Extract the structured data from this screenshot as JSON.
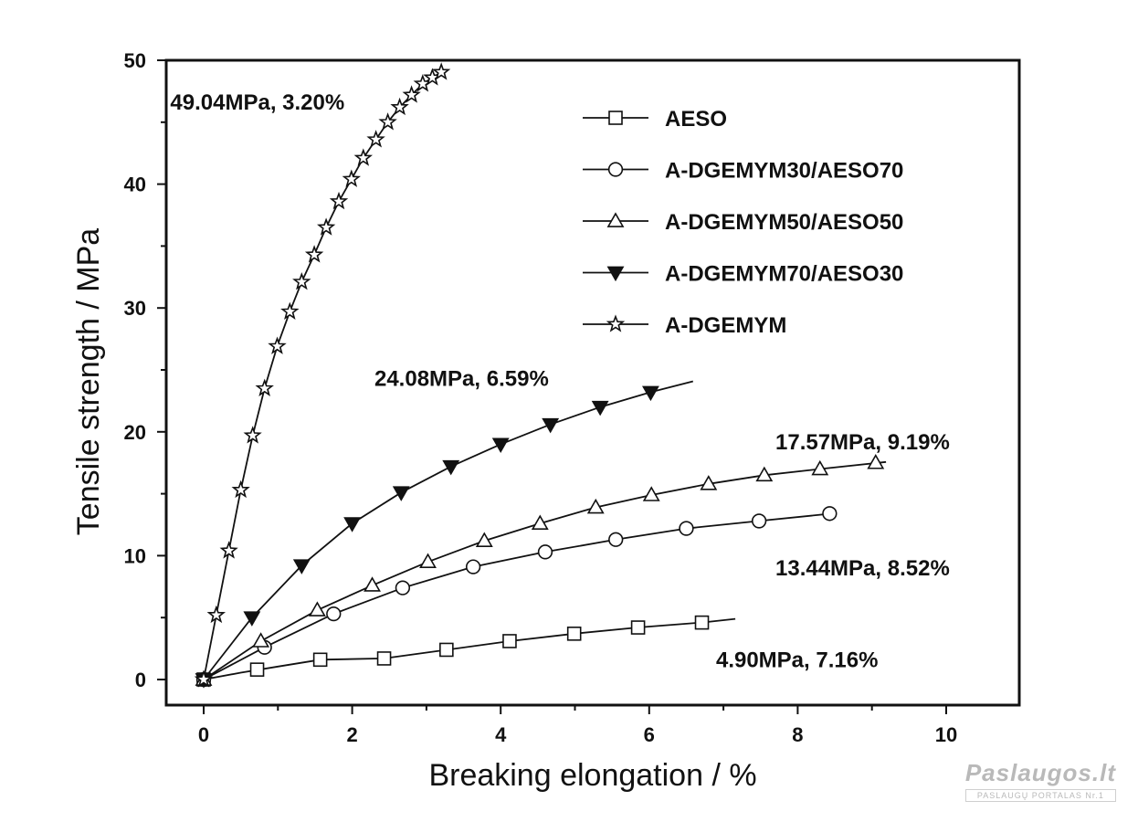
{
  "chart_data": {
    "type": "line",
    "xlabel": "Breaking elongation / %",
    "ylabel": "Tensile strength / MPa",
    "xlim": [
      -0.5,
      11
    ],
    "ylim": [
      -2,
      50
    ],
    "x_ticks": [
      0,
      2,
      4,
      6,
      8,
      10
    ],
    "y_ticks": [
      0,
      10,
      20,
      30,
      40,
      50
    ],
    "grid": false,
    "legend_position": "top-right",
    "series": [
      {
        "name": "AESO",
        "marker": "square",
        "filled": false,
        "points": [
          [
            0,
            0
          ],
          [
            0.72,
            0.8
          ],
          [
            1.57,
            1.6
          ],
          [
            2.43,
            1.7
          ],
          [
            3.27,
            2.4
          ],
          [
            4.12,
            3.1
          ],
          [
            4.99,
            3.7
          ],
          [
            5.85,
            4.2
          ],
          [
            6.71,
            4.6
          ]
        ],
        "curve": [
          [
            0,
            0
          ],
          [
            0.5,
            0.55
          ],
          [
            1.0,
            1.05
          ],
          [
            1.57,
            1.6
          ],
          [
            2.43,
            1.7
          ],
          [
            3.27,
            2.4
          ],
          [
            4.12,
            3.1
          ],
          [
            4.99,
            3.7
          ],
          [
            5.85,
            4.2
          ],
          [
            6.71,
            4.6
          ],
          [
            7.16,
            4.9
          ]
        ]
      },
      {
        "name": "A-DGEMYM30/AESO70",
        "marker": "circle",
        "filled": false,
        "points": [
          [
            0,
            0
          ],
          [
            0.82,
            2.6
          ],
          [
            1.75,
            5.3
          ],
          [
            2.68,
            7.4
          ],
          [
            3.63,
            9.1
          ],
          [
            4.6,
            10.3
          ],
          [
            5.55,
            11.3
          ],
          [
            6.5,
            12.2
          ],
          [
            7.48,
            12.8
          ],
          [
            8.43,
            13.4
          ]
        ],
        "curve": [
          [
            0,
            0
          ],
          [
            0.82,
            2.6
          ],
          [
            1.75,
            5.3
          ],
          [
            2.68,
            7.4
          ],
          [
            3.63,
            9.1
          ],
          [
            4.6,
            10.3
          ],
          [
            5.55,
            11.3
          ],
          [
            6.5,
            12.2
          ],
          [
            7.48,
            12.8
          ],
          [
            8.52,
            13.44
          ]
        ]
      },
      {
        "name": "A-DGEMYM50/AESO50",
        "marker": "triangle-up",
        "filled": false,
        "points": [
          [
            0,
            0
          ],
          [
            0.77,
            3.1
          ],
          [
            1.53,
            5.6
          ],
          [
            2.27,
            7.6
          ],
          [
            3.02,
            9.5
          ],
          [
            3.78,
            11.2
          ],
          [
            4.53,
            12.6
          ],
          [
            5.28,
            13.9
          ],
          [
            6.03,
            14.9
          ],
          [
            6.8,
            15.8
          ],
          [
            7.55,
            16.5
          ],
          [
            8.3,
            17.0
          ],
          [
            9.05,
            17.5
          ]
        ],
        "curve": [
          [
            0,
            0
          ],
          [
            0.77,
            3.1
          ],
          [
            1.53,
            5.6
          ],
          [
            2.27,
            7.6
          ],
          [
            3.02,
            9.5
          ],
          [
            3.78,
            11.2
          ],
          [
            4.53,
            12.6
          ],
          [
            5.28,
            13.9
          ],
          [
            6.03,
            14.9
          ],
          [
            6.8,
            15.8
          ],
          [
            7.55,
            16.5
          ],
          [
            8.3,
            17.0
          ],
          [
            9.19,
            17.57
          ]
        ]
      },
      {
        "name": "A-DGEMYM70/AESO30",
        "marker": "triangle-down",
        "filled": true,
        "points": [
          [
            0,
            0
          ],
          [
            0.65,
            5.0
          ],
          [
            1.32,
            9.2
          ],
          [
            2.0,
            12.6
          ],
          [
            2.66,
            15.1
          ],
          [
            3.33,
            17.2
          ],
          [
            4.0,
            19.0
          ],
          [
            4.67,
            20.6
          ],
          [
            5.34,
            22.0
          ],
          [
            6.02,
            23.2
          ]
        ],
        "curve": [
          [
            0,
            0
          ],
          [
            0.65,
            5.0
          ],
          [
            1.32,
            9.2
          ],
          [
            2.0,
            12.6
          ],
          [
            2.66,
            15.1
          ],
          [
            3.33,
            17.2
          ],
          [
            4.0,
            19.0
          ],
          [
            4.67,
            20.6
          ],
          [
            5.34,
            22.0
          ],
          [
            6.02,
            23.2
          ],
          [
            6.59,
            24.08
          ]
        ]
      },
      {
        "name": "A-DGEMYM",
        "marker": "star",
        "filled": false,
        "points": [
          [
            0,
            0
          ],
          [
            0.17,
            5.2
          ],
          [
            0.34,
            10.4
          ],
          [
            0.5,
            15.3
          ],
          [
            0.66,
            19.7
          ],
          [
            0.82,
            23.5
          ],
          [
            0.99,
            26.9
          ],
          [
            1.16,
            29.7
          ],
          [
            1.32,
            32.1
          ],
          [
            1.49,
            34.3
          ],
          [
            1.65,
            36.5
          ],
          [
            1.82,
            38.6
          ],
          [
            1.99,
            40.4
          ],
          [
            2.15,
            42.1
          ],
          [
            2.32,
            43.6
          ],
          [
            2.48,
            45.0
          ],
          [
            2.64,
            46.2
          ],
          [
            2.8,
            47.2
          ],
          [
            2.95,
            48.1
          ],
          [
            3.08,
            48.6
          ],
          [
            3.2,
            49.04
          ]
        ],
        "curve": [
          [
            0,
            0
          ],
          [
            0.17,
            5.2
          ],
          [
            0.34,
            10.4
          ],
          [
            0.5,
            15.3
          ],
          [
            0.66,
            19.7
          ],
          [
            0.82,
            23.5
          ],
          [
            0.99,
            26.9
          ],
          [
            1.16,
            29.7
          ],
          [
            1.32,
            32.1
          ],
          [
            1.49,
            34.3
          ],
          [
            1.65,
            36.5
          ],
          [
            1.82,
            38.6
          ],
          [
            1.99,
            40.4
          ],
          [
            2.15,
            42.1
          ],
          [
            2.32,
            43.6
          ],
          [
            2.48,
            45.0
          ],
          [
            2.64,
            46.2
          ],
          [
            2.8,
            47.2
          ],
          [
            2.95,
            48.1
          ],
          [
            3.08,
            48.6
          ],
          [
            3.2,
            49.04
          ]
        ]
      }
    ],
    "annotations": [
      {
        "text": "49.04MPa, 3.20%",
        "x": -0.45,
        "y": 46.0
      },
      {
        "text": "24.08MPa, 6.59%",
        "x": 2.3,
        "y": 23.7
      },
      {
        "text": "17.57MPa, 9.19%",
        "x": 7.7,
        "y": 18.6
      },
      {
        "text": "13.44MPa, 8.52%",
        "x": 7.7,
        "y": 8.4
      },
      {
        "text": "4.90MPa, 7.16%",
        "x": 6.9,
        "y": 1.0
      }
    ]
  },
  "watermark": {
    "main": "Paslaugos.lt",
    "sub": "PASLAUGŲ PORTALAS  Nr.1"
  }
}
